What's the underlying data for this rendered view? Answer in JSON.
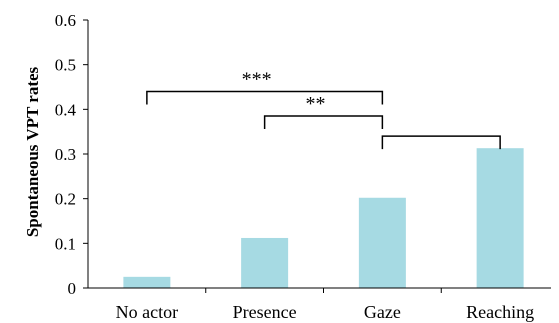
{
  "chart_data": {
    "type": "bar",
    "categories": [
      "No actor",
      "Presence",
      "Gaze",
      "Reaching"
    ],
    "values": [
      0.025,
      0.112,
      0.202,
      0.313
    ],
    "ylabel": "Spontaneous VPT rates",
    "xlabel": "",
    "ylim": [
      0,
      0.6
    ],
    "yticks": [
      0,
      0.1,
      0.2,
      0.3,
      0.4,
      0.5,
      0.6
    ],
    "ytick_labels": [
      "0",
      "0.1",
      "0.2",
      "0.3",
      "0.4",
      "0.5",
      "0.6"
    ],
    "bar_color": "#a6dae3",
    "grid": false,
    "annotations": [
      {
        "from": "No actor",
        "to": "Gaze",
        "level": 0.44,
        "label": "***"
      },
      {
        "from": "Presence",
        "to": "Gaze",
        "level": 0.385,
        "label": "**"
      },
      {
        "from": "Gaze",
        "to": "Reaching",
        "level": 0.34,
        "label": ""
      }
    ]
  }
}
